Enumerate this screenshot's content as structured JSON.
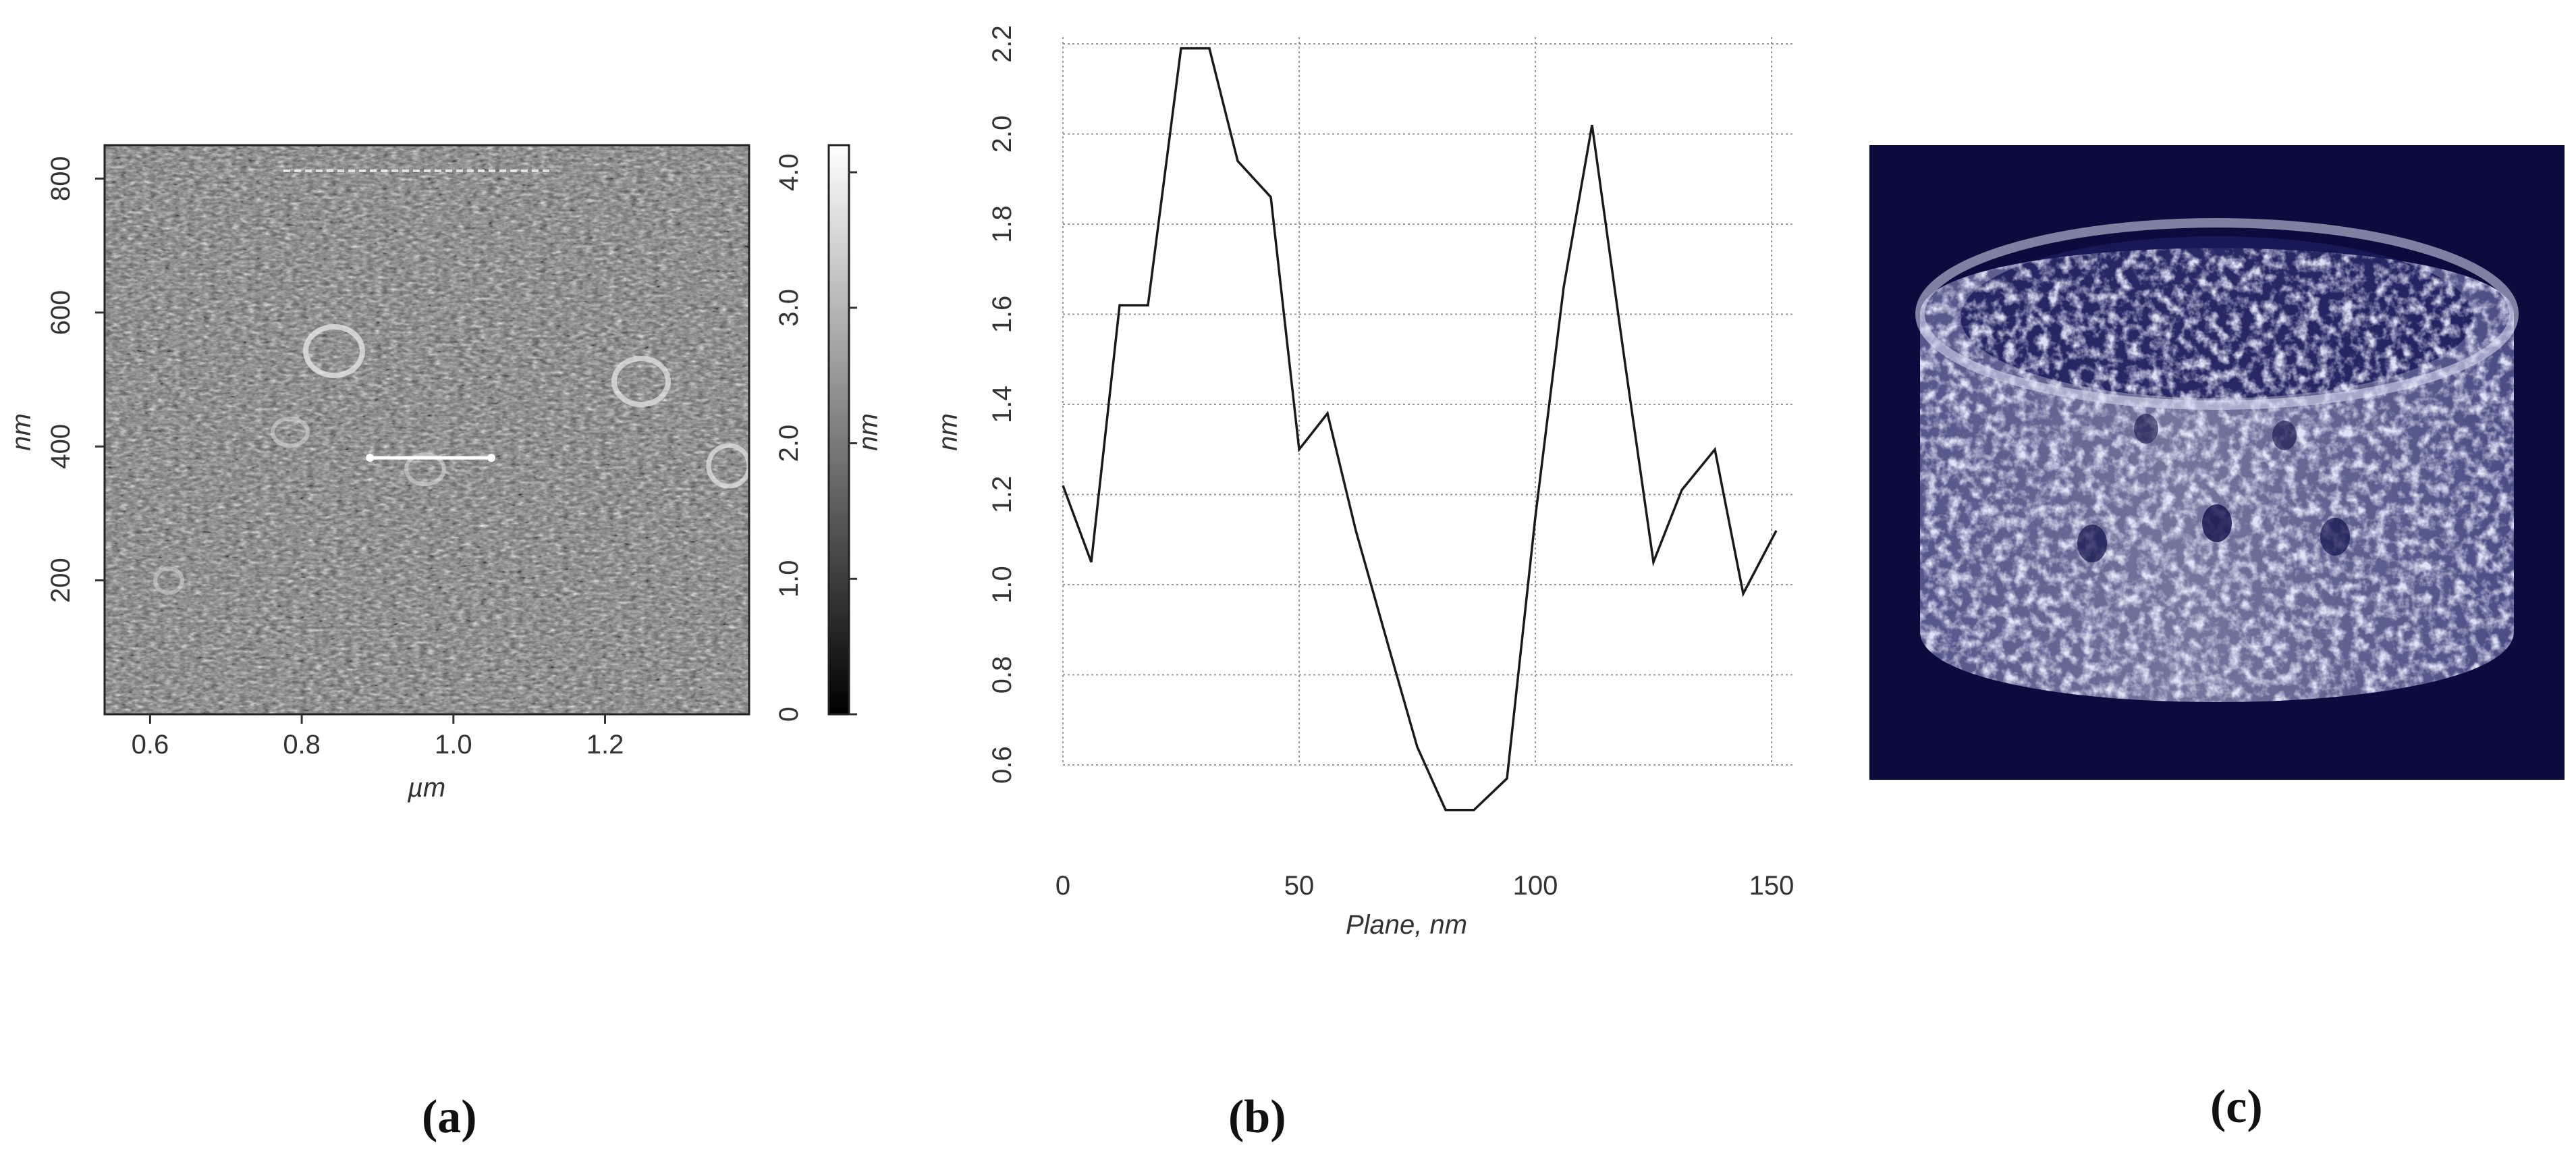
{
  "chart_data": [
    {
      "type": "heatmap",
      "xlabel": "µm",
      "ylabel": "nm",
      "xticks": [
        "0.6",
        "0.8",
        "1.0",
        "1.2"
      ],
      "xtick_values": [
        0.6,
        0.8,
        1.0,
        1.2
      ],
      "xlim": [
        0.54,
        1.39
      ],
      "yticks": [
        "200",
        "400",
        "600",
        "800"
      ],
      "ytick_values": [
        200,
        400,
        600,
        800
      ],
      "ylim": [
        0,
        850
      ],
      "colorbar": {
        "label": "nm",
        "ticks": [
          "0",
          "1.0",
          "2.0",
          "3.0",
          "4.0"
        ],
        "tick_values": [
          0,
          1,
          2,
          3,
          4
        ],
        "range": [
          0,
          4.2
        ],
        "colors": [
          "#000000",
          "#ffffff"
        ]
      },
      "profile_line": {
        "x": [
          0.89,
          1.05
        ],
        "y": [
          383,
          383
        ]
      },
      "caption": "(a)"
    },
    {
      "type": "line",
      "xlabel": "Plane, nm",
      "ylabel": "nm",
      "xticks": [
        "0",
        "50",
        "100",
        "150"
      ],
      "xtick_values": [
        0,
        50,
        100,
        150
      ],
      "xlim": [
        0,
        155
      ],
      "yticks": [
        "0.6",
        "0.8",
        "1.0",
        "1.2",
        "1.4",
        "1.6",
        "1.8",
        "2.0",
        "2.2"
      ],
      "ytick_values": [
        0.6,
        0.8,
        1.0,
        1.2,
        1.4,
        1.6,
        1.8,
        2.0,
        2.2
      ],
      "ylim": [
        0.6,
        2.2
      ],
      "grid": true,
      "series": [
        {
          "x": [
            0,
            6,
            12,
            18,
            25,
            31,
            37,
            44,
            50,
            56,
            62,
            69,
            75,
            81,
            87,
            94,
            100,
            106,
            112,
            119,
            125,
            131,
            138,
            144,
            151
          ],
          "y": [
            1.22,
            1.05,
            1.62,
            1.62,
            2.19,
            2.19,
            1.94,
            1.86,
            1.3,
            1.38,
            1.12,
            0.86,
            0.64,
            0.5,
            0.5,
            0.57,
            1.15,
            1.66,
            2.02,
            1.49,
            1.05,
            1.21,
            1.3,
            0.98,
            1.12
          ]
        }
      ],
      "caption": "(b)"
    },
    {
      "type": "image",
      "subject": "3D molecular surface render of cylindrical protein",
      "background": "#0b0c3d",
      "caption": "(c)"
    }
  ]
}
